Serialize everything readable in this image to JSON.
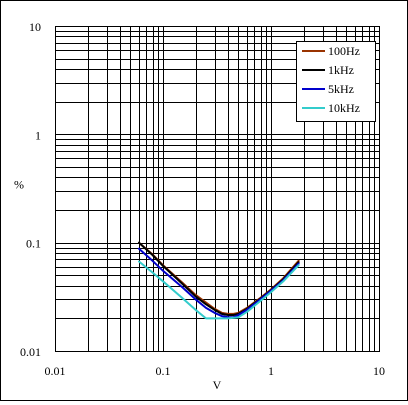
{
  "chart_data": {
    "type": "line",
    "xscale": "log",
    "yscale": "log",
    "xlim": [
      0.01,
      10
    ],
    "ylim": [
      0.01,
      10
    ],
    "xlabel": "V",
    "ylabel": "%",
    "x_ticks": [
      "0.01",
      "0.1",
      "1",
      "10"
    ],
    "y_ticks": [
      "0.01",
      "0.1",
      "1",
      "10"
    ],
    "grid": true,
    "legend_position": "top-right",
    "series": [
      {
        "name": "100Hz",
        "color": "#993300",
        "x": [
          0.06,
          0.08,
          0.1,
          0.15,
          0.2,
          0.25,
          0.3,
          0.35,
          0.4,
          0.45,
          0.5,
          0.6,
          0.8,
          1.0,
          1.3,
          1.8
        ],
        "y": [
          0.1,
          0.078,
          0.062,
          0.043,
          0.033,
          0.028,
          0.0245,
          0.0225,
          0.022,
          0.022,
          0.0225,
          0.025,
          0.031,
          0.037,
          0.047,
          0.068
        ]
      },
      {
        "name": "1kHz",
        "color": "#000000",
        "x": [
          0.06,
          0.08,
          0.1,
          0.15,
          0.2,
          0.25,
          0.3,
          0.35,
          0.4,
          0.45,
          0.5,
          0.6,
          0.8,
          1.0,
          1.3,
          1.8
        ],
        "y": [
          0.1,
          0.077,
          0.061,
          0.042,
          0.032,
          0.027,
          0.024,
          0.022,
          0.0215,
          0.0215,
          0.022,
          0.0245,
          0.0305,
          0.0365,
          0.046,
          0.066
        ]
      },
      {
        "name": "5kHz",
        "color": "#0000cc",
        "x": [
          0.06,
          0.08,
          0.1,
          0.15,
          0.2,
          0.25,
          0.3,
          0.35,
          0.4,
          0.45,
          0.5,
          0.6,
          0.8,
          1.0,
          1.3,
          1.8
        ],
        "y": [
          0.088,
          0.068,
          0.055,
          0.039,
          0.03,
          0.025,
          0.0225,
          0.021,
          0.0205,
          0.0205,
          0.0215,
          0.024,
          0.03,
          0.036,
          0.045,
          0.064
        ]
      },
      {
        "name": "10kHz",
        "color": "#33cccc",
        "x": [
          0.06,
          0.08,
          0.1,
          0.15,
          0.2,
          0.25,
          0.3,
          0.4,
          0.5,
          0.6,
          0.8,
          1.0,
          1.3,
          1.8
        ],
        "y": [
          0.067,
          0.053,
          0.044,
          0.031,
          0.024,
          0.02,
          0.02,
          0.02,
          0.0205,
          0.023,
          0.029,
          0.035,
          0.044,
          0.062
        ]
      }
    ]
  }
}
